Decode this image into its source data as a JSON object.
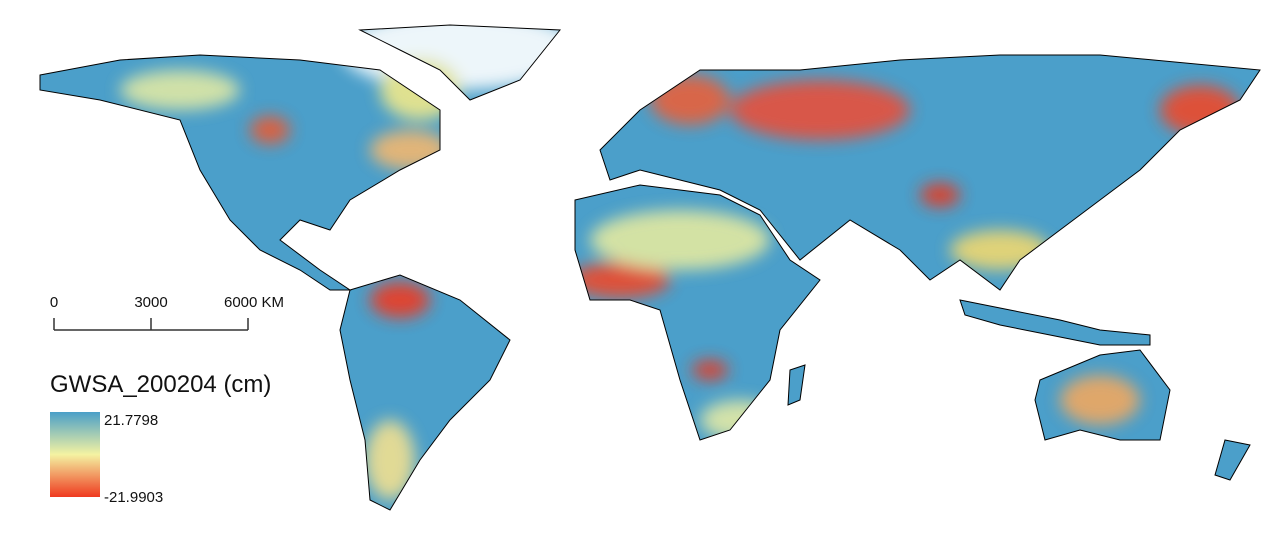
{
  "legend": {
    "title": "GWSA_200204 (cm)",
    "max_label": "21.7798",
    "min_label": "-21.9903"
  },
  "scale_bar": {
    "ticks": [
      {
        "value": 0,
        "label": "0"
      },
      {
        "value": 3000,
        "label": "3000"
      },
      {
        "value": 6000,
        "label": "6000 KM"
      }
    ]
  }
}
